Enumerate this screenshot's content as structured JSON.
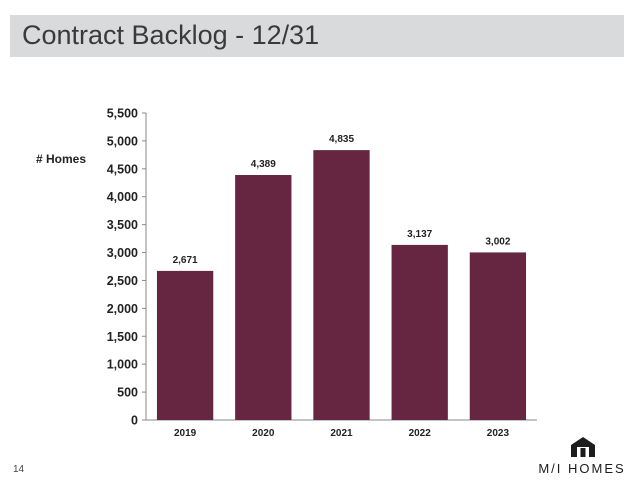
{
  "header": {
    "title": "Contract Backlog - 12/31"
  },
  "footer": {
    "page_number": "14",
    "logo_text": "M/I HOMES"
  },
  "colors": {
    "bar": "#662540",
    "axis": "#888888",
    "title_bar": "#d9dadb"
  },
  "chart_data": {
    "type": "bar",
    "title": "",
    "ylabel": "# Homes",
    "xlabel": "",
    "categories": [
      "2019",
      "2020",
      "2021",
      "2022",
      "2023"
    ],
    "values": [
      2671,
      4389,
      4835,
      3137,
      3002
    ],
    "value_labels": [
      "2,671",
      "4,389",
      "4,835",
      "3,137",
      "3,002"
    ],
    "ylim": [
      0,
      5500
    ],
    "yticks": [
      0,
      500,
      1000,
      1500,
      2000,
      2500,
      3000,
      3500,
      4000,
      4500,
      5000,
      5500
    ],
    "ytick_labels": [
      "0",
      "500",
      "1,000",
      "1,500",
      "2,000",
      "2,500",
      "3,000",
      "3,500",
      "4,000",
      "4,500",
      "5,000",
      "5,500"
    ],
    "grid": false,
    "legend": "none"
  }
}
